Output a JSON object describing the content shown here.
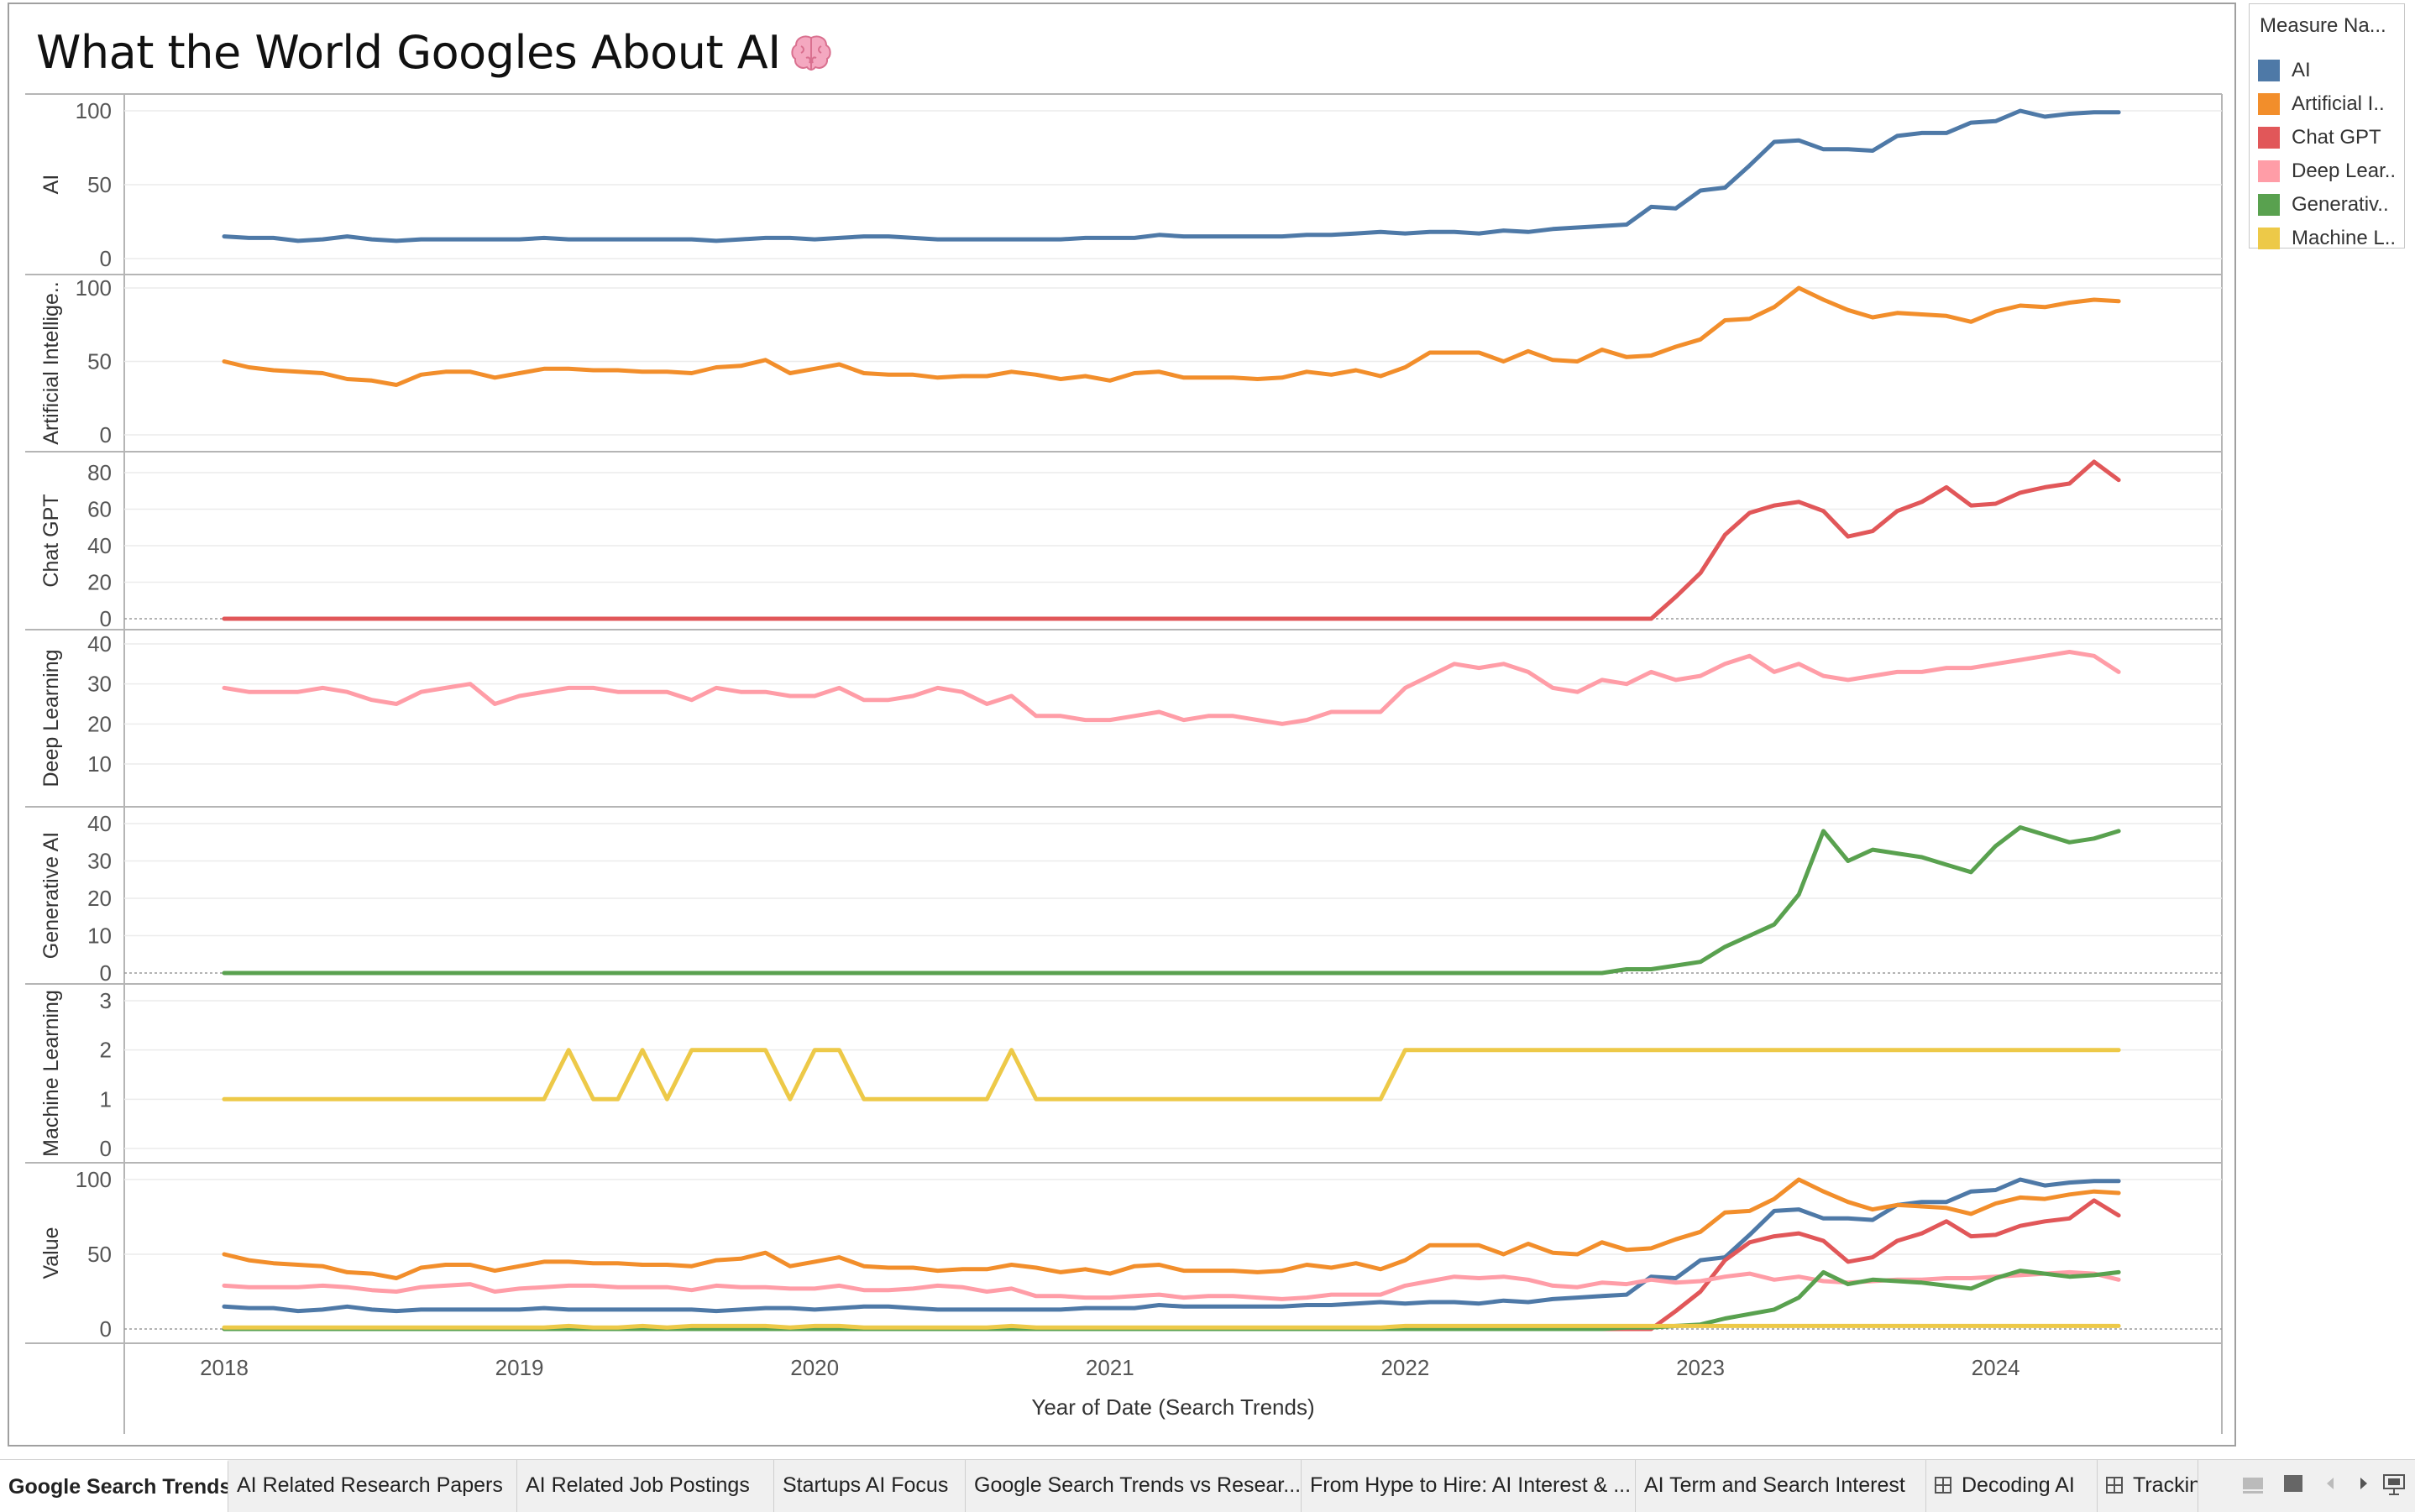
{
  "title": "What the World Googles About AI",
  "title_icon": "brain-icon",
  "legend": {
    "title": "Measure Na...",
    "items": [
      {
        "label": "AI",
        "color": "#4e79a7"
      },
      {
        "label": "Artificial I..",
        "color": "#f28e2b"
      },
      {
        "label": "Chat GPT",
        "color": "#e15759"
      },
      {
        "label": "Deep Lear..",
        "color": "#ff9da7"
      },
      {
        "label": "Generativ..",
        "color": "#59a14f"
      },
      {
        "label": "Machine L..",
        "color": "#edc948"
      }
    ]
  },
  "chart_data": {
    "type": "line",
    "x_axis_label": "Year of Date (Search Trends)",
    "x_ticks": [
      "2018",
      "2019",
      "2020",
      "2021",
      "2022",
      "2023",
      "2024"
    ],
    "x_range": [
      "2018-01",
      "2024-06"
    ],
    "x": [
      "2018-01",
      "2018-02",
      "2018-03",
      "2018-04",
      "2018-05",
      "2018-06",
      "2018-07",
      "2018-08",
      "2018-09",
      "2018-10",
      "2018-11",
      "2018-12",
      "2019-01",
      "2019-02",
      "2019-03",
      "2019-04",
      "2019-05",
      "2019-06",
      "2019-07",
      "2019-08",
      "2019-09",
      "2019-10",
      "2019-11",
      "2019-12",
      "2020-01",
      "2020-02",
      "2020-03",
      "2020-04",
      "2020-05",
      "2020-06",
      "2020-07",
      "2020-08",
      "2020-09",
      "2020-10",
      "2020-11",
      "2020-12",
      "2021-01",
      "2021-02",
      "2021-03",
      "2021-04",
      "2021-05",
      "2021-06",
      "2021-07",
      "2021-08",
      "2021-09",
      "2021-10",
      "2021-11",
      "2021-12",
      "2022-01",
      "2022-02",
      "2022-03",
      "2022-04",
      "2022-05",
      "2022-06",
      "2022-07",
      "2022-08",
      "2022-09",
      "2022-10",
      "2022-11",
      "2022-12",
      "2023-01",
      "2023-02",
      "2023-03",
      "2023-04",
      "2023-05",
      "2023-06",
      "2023-07",
      "2023-08",
      "2023-09",
      "2023-10",
      "2023-11",
      "2023-12",
      "2024-01",
      "2024-02",
      "2024-03",
      "2024-04",
      "2024-05",
      "2024-06"
    ],
    "grid": true,
    "panels": [
      {
        "ylabel": "AI",
        "series": "AI",
        "ylim": [
          0,
          105
        ],
        "yticks": [
          "0",
          "50",
          "100"
        ]
      },
      {
        "ylabel": "Artificial Intellige..",
        "series": "Artificial Intelligence",
        "ylim": [
          0,
          105
        ],
        "yticks": [
          "0",
          "50",
          "100"
        ]
      },
      {
        "ylabel": "Chat GPT",
        "series": "Chat GPT",
        "ylim": [
          0,
          87
        ],
        "yticks": [
          "0",
          "20",
          "40",
          "60",
          "80"
        ]
      },
      {
        "ylabel": "Deep Learning",
        "series": "Deep Learning",
        "ylim": [
          4,
          41
        ],
        "yticks": [
          "10",
          "20",
          "30",
          "40"
        ]
      },
      {
        "ylabel": "Generative AI",
        "series": "Generative AI",
        "ylim": [
          0,
          42
        ],
        "yticks": [
          "0",
          "10",
          "20",
          "30",
          "40"
        ]
      },
      {
        "ylabel": "Machine Learning",
        "series": "Machine Learning",
        "ylim": [
          -0.1,
          3.4
        ],
        "yticks": [
          "0",
          "1",
          "2",
          "3"
        ]
      },
      {
        "ylabel": "Value",
        "series": "all",
        "ylim": [
          0,
          105
        ],
        "yticks": [
          "0",
          "50",
          "100"
        ]
      }
    ],
    "series": [
      {
        "name": "AI",
        "color": "#4e79a7",
        "values": [
          15,
          14,
          14,
          12,
          13,
          15,
          13,
          12,
          13,
          13,
          13,
          13,
          13,
          14,
          13,
          13,
          13,
          13,
          13,
          13,
          12,
          13,
          14,
          14,
          13,
          14,
          15,
          15,
          14,
          13,
          13,
          13,
          13,
          13,
          13,
          14,
          14,
          14,
          16,
          15,
          15,
          15,
          15,
          15,
          16,
          16,
          17,
          18,
          17,
          18,
          18,
          17,
          19,
          18,
          20,
          21,
          22,
          23,
          35,
          34,
          46,
          48,
          63,
          79,
          80,
          74,
          74,
          73,
          83,
          85,
          85,
          92,
          93,
          100,
          96,
          98,
          99,
          99
        ]
      },
      {
        "name": "Artificial Intelligence",
        "color": "#f28e2b",
        "values": [
          50,
          46,
          44,
          43,
          42,
          38,
          37,
          34,
          41,
          43,
          43,
          39,
          42,
          45,
          45,
          44,
          44,
          43,
          43,
          42,
          46,
          47,
          51,
          42,
          45,
          48,
          42,
          41,
          41,
          39,
          40,
          40,
          43,
          41,
          38,
          40,
          37,
          42,
          43,
          39,
          39,
          39,
          38,
          39,
          43,
          41,
          44,
          40,
          46,
          56,
          56,
          56,
          50,
          57,
          51,
          50,
          58,
          53,
          54,
          60,
          65,
          78,
          79,
          87,
          100,
          92,
          85,
          80,
          83,
          82,
          81,
          77,
          84,
          88,
          87,
          90,
          92,
          91
        ]
      },
      {
        "name": "Chat GPT",
        "color": "#e15759",
        "values": [
          0,
          0,
          0,
          0,
          0,
          0,
          0,
          0,
          0,
          0,
          0,
          0,
          0,
          0,
          0,
          0,
          0,
          0,
          0,
          0,
          0,
          0,
          0,
          0,
          0,
          0,
          0,
          0,
          0,
          0,
          0,
          0,
          0,
          0,
          0,
          0,
          0,
          0,
          0,
          0,
          0,
          0,
          0,
          0,
          0,
          0,
          0,
          0,
          0,
          0,
          0,
          0,
          0,
          0,
          0,
          0,
          0,
          0,
          0,
          12,
          25,
          46,
          58,
          62,
          64,
          59,
          45,
          48,
          59,
          64,
          72,
          62,
          63,
          69,
          72,
          74,
          86,
          76
        ]
      },
      {
        "name": "Deep Learning",
        "color": "#ff9da7",
        "values": [
          29,
          28,
          28,
          28,
          29,
          28,
          26,
          25,
          28,
          29,
          30,
          25,
          27,
          28,
          29,
          29,
          28,
          28,
          28,
          26,
          29,
          28,
          28,
          27,
          27,
          29,
          26,
          26,
          27,
          29,
          28,
          25,
          27,
          22,
          22,
          21,
          21,
          22,
          23,
          21,
          22,
          22,
          21,
          20,
          21,
          23,
          23,
          23,
          29,
          32,
          35,
          34,
          35,
          33,
          29,
          28,
          31,
          30,
          33,
          31,
          32,
          35,
          37,
          33,
          35,
          32,
          31,
          32,
          33,
          33,
          34,
          34,
          35,
          36,
          37,
          38,
          37,
          33
        ]
      },
      {
        "name": "Generative AI",
        "color": "#59a14f",
        "values": [
          0,
          0,
          0,
          0,
          0,
          0,
          0,
          0,
          0,
          0,
          0,
          0,
          0,
          0,
          0,
          0,
          0,
          0,
          0,
          0,
          0,
          0,
          0,
          0,
          0,
          0,
          0,
          0,
          0,
          0,
          0,
          0,
          0,
          0,
          0,
          0,
          0,
          0,
          0,
          0,
          0,
          0,
          0,
          0,
          0,
          0,
          0,
          0,
          0,
          0,
          0,
          0,
          0,
          0,
          0,
          0,
          0,
          1,
          1,
          2,
          3,
          7,
          10,
          13,
          21,
          38,
          30,
          33,
          32,
          31,
          29,
          27,
          34,
          39,
          37,
          35,
          36,
          38
        ]
      },
      {
        "name": "Machine Learning",
        "color": "#edc948",
        "values": [
          1,
          1,
          1,
          1,
          1,
          1,
          1,
          1,
          1,
          1,
          1,
          1,
          1,
          1,
          2,
          1,
          1,
          2,
          1,
          2,
          2,
          2,
          2,
          1,
          2,
          2,
          1,
          1,
          1,
          1,
          1,
          1,
          2,
          1,
          1,
          1,
          1,
          1,
          1,
          1,
          1,
          1,
          1,
          1,
          1,
          1,
          1,
          1,
          2,
          2,
          2,
          2,
          2,
          2,
          2,
          2,
          2,
          2,
          2,
          2,
          2,
          2,
          2,
          2,
          2,
          2,
          2,
          2,
          2,
          2,
          2,
          2,
          2,
          2,
          2,
          2,
          2,
          2
        ]
      }
    ]
  },
  "tabs": [
    {
      "label": "Google Search Trends",
      "active": true,
      "icon": ""
    },
    {
      "label": "AI Related Research Papers",
      "active": false,
      "icon": ""
    },
    {
      "label": "AI Related Job Postings",
      "active": false,
      "icon": ""
    },
    {
      "label": "Startups AI Focus",
      "active": false,
      "icon": ""
    },
    {
      "label": "Google Search Trends vs Resear...",
      "active": false,
      "icon": ""
    },
    {
      "label": "From Hype to Hire: AI Interest & ...",
      "active": false,
      "icon": ""
    },
    {
      "label": "AI Term and Search Interest",
      "active": false,
      "icon": ""
    },
    {
      "label": "Decoding AI",
      "active": false,
      "icon": "grid-icon"
    },
    {
      "label": "Trackin",
      "active": false,
      "icon": "grid-icon"
    }
  ],
  "nav_controls": [
    "filmstrip-icon",
    "single-sheet-icon",
    "prev-arrow-icon",
    "next-arrow-icon",
    "presentation-icon"
  ]
}
